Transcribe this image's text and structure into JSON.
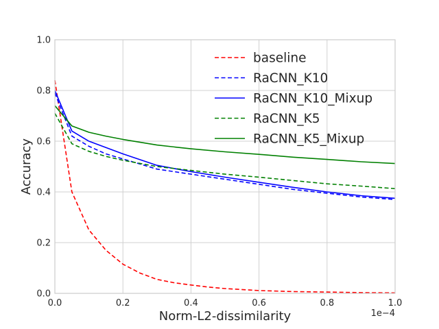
{
  "chart_data": {
    "type": "line",
    "xlabel": "Norm-L2-dissimilarity",
    "ylabel": "Accuracy",
    "x_offset_label": "1e−4",
    "xlim": [
      0,
      1.0
    ],
    "ylim": [
      0,
      1.0
    ],
    "x_ticks": [
      0.0,
      0.2,
      0.4,
      0.6,
      0.8,
      1.0
    ],
    "x_tick_labels": [
      "0.0",
      "0.2",
      "0.4",
      "0.6",
      "0.8",
      "1.0"
    ],
    "y_ticks": [
      0.0,
      0.2,
      0.4,
      0.6,
      0.8,
      1.0
    ],
    "y_tick_labels": [
      "0.0",
      "0.2",
      "0.4",
      "0.6",
      "0.8",
      "1.0"
    ],
    "grid": true,
    "legend_position": "top-right",
    "series": [
      {
        "name": "baseline",
        "color": "#ff0000",
        "style": "dashed",
        "x": [
          0,
          0.05,
          0.1,
          0.15,
          0.2,
          0.25,
          0.3,
          0.35,
          0.4,
          0.45,
          0.5,
          0.6,
          0.7,
          0.8,
          0.9,
          1.0
        ],
        "y": [
          0.84,
          0.4,
          0.25,
          0.17,
          0.115,
          0.08,
          0.055,
          0.042,
          0.033,
          0.025,
          0.019,
          0.011,
          0.007,
          0.005,
          0.003,
          0.002
        ]
      },
      {
        "name": "RaCNN_K10",
        "color": "#0000ff",
        "style": "dashed",
        "x": [
          0,
          0.05,
          0.1,
          0.15,
          0.2,
          0.3,
          0.4,
          0.5,
          0.6,
          0.7,
          0.8,
          0.9,
          1.0
        ],
        "y": [
          0.79,
          0.62,
          0.58,
          0.55,
          0.53,
          0.49,
          0.47,
          0.45,
          0.43,
          0.41,
          0.395,
          0.38,
          0.37
        ]
      },
      {
        "name": "RaCNN_K10_Mixup",
        "color": "#0000ff",
        "style": "solid",
        "x": [
          0,
          0.05,
          0.1,
          0.15,
          0.2,
          0.3,
          0.4,
          0.5,
          0.6,
          0.7,
          0.8,
          0.9,
          1.0
        ],
        "y": [
          0.8,
          0.64,
          0.6,
          0.575,
          0.55,
          0.505,
          0.48,
          0.458,
          0.438,
          0.418,
          0.4,
          0.385,
          0.375
        ]
      },
      {
        "name": "RaCNN_K5",
        "color": "#008000",
        "style": "dashed",
        "x": [
          0,
          0.05,
          0.1,
          0.15,
          0.2,
          0.3,
          0.4,
          0.5,
          0.6,
          0.7,
          0.8,
          0.9,
          1.0
        ],
        "y": [
          0.71,
          0.59,
          0.56,
          0.54,
          0.525,
          0.5,
          0.485,
          0.47,
          0.458,
          0.445,
          0.432,
          0.423,
          0.413
        ]
      },
      {
        "name": "RaCNN_K5_Mixup",
        "color": "#008000",
        "style": "solid",
        "x": [
          0,
          0.05,
          0.1,
          0.15,
          0.2,
          0.3,
          0.4,
          0.5,
          0.6,
          0.7,
          0.8,
          0.9,
          1.0
        ],
        "y": [
          0.74,
          0.66,
          0.635,
          0.62,
          0.607,
          0.585,
          0.57,
          0.558,
          0.548,
          0.537,
          0.528,
          0.519,
          0.512
        ]
      }
    ]
  }
}
